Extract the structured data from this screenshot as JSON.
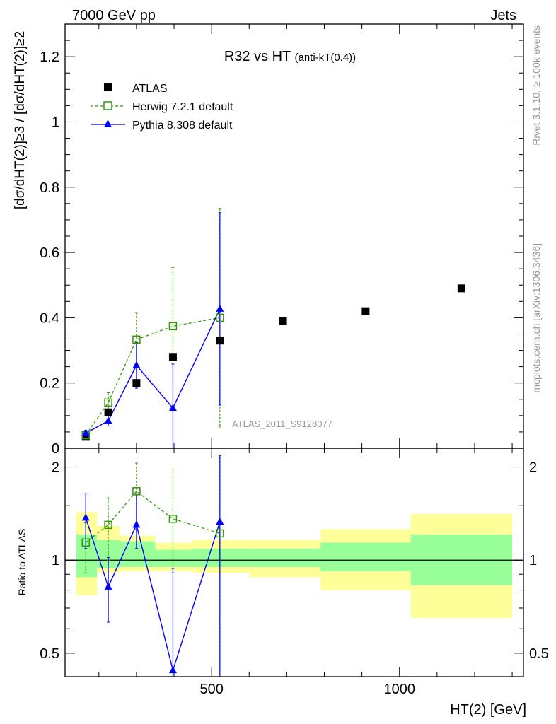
{
  "header": {
    "left": "7000 GeV pp",
    "right": "Jets"
  },
  "side": {
    "rivet": "Rivet 3.1.10, ≥ 100k events",
    "mcplots": "mcplots.cern.ch [arXiv:1306.3436]"
  },
  "chart_data": {
    "type": "scatter",
    "title": "R32 vs HT",
    "title_suffix": "(anti-kT(0.4))",
    "analysis_label": "ATLAS_2011_S9128077",
    "xlabel": "HT(2) [GeV]",
    "ylabel": "[dσ/dHT(2)]≥3 / [dσ/dHT(2)]≥2",
    "ratio_ylabel": "Ratio to ATLAS",
    "xlim": [
      110,
      1330
    ],
    "ylim": [
      0,
      1.3
    ],
    "ratio_ylim": [
      0.42,
      2.3
    ],
    "ratio_log": true,
    "x_ticks": [
      500,
      1000
    ],
    "y_ticks": [
      0,
      0.2,
      0.4,
      0.6,
      0.8,
      1,
      1.2
    ],
    "y_tick_labels": [
      "0",
      "0.2",
      "0.4",
      "0.6",
      "0.8",
      "1",
      "1.2"
    ],
    "ratio_ticks": [
      0.5,
      1,
      2
    ],
    "ratio_tick_labels": [
      "0.5",
      "1",
      "2"
    ],
    "legend_position": "top-left",
    "colors": {
      "atlas": "#000000",
      "herwig": "#339900",
      "pythia": "#0000ff",
      "band_inner": "#99ff99",
      "band_outer": "#ffff99"
    },
    "series": [
      {
        "name": "ATLAS",
        "style": "filled-square",
        "x": [
          165,
          225,
          300,
          397,
          522,
          690,
          910,
          1165
        ],
        "y": [
          0.035,
          0.11,
          0.2,
          0.28,
          0.33,
          0.39,
          0.42,
          0.49
        ]
      },
      {
        "name": "Herwig 7.2.1 default",
        "style": "open-square-dashed",
        "x": [
          165,
          225,
          300,
          397,
          522
        ],
        "y": [
          0.04,
          0.14,
          0.333,
          0.374,
          0.4
        ],
        "err": [
          0.005,
          0.03,
          0.083,
          0.18,
          0.335
        ]
      },
      {
        "name": "Pythia 8.308 default",
        "style": "triangle-line",
        "x": [
          165,
          225,
          300,
          397,
          522
        ],
        "y": [
          0.046,
          0.084,
          0.254,
          0.123,
          0.427
        ],
        "err": [
          0.009,
          0.016,
          0.07,
          0.135,
          0.295
        ]
      }
    ],
    "ratio": {
      "herwig": {
        "x": [
          165,
          225,
          300,
          397,
          522
        ],
        "y": [
          1.14,
          1.3,
          1.67,
          1.36,
          1.22
        ],
        "lo": [
          0.91,
          1.0,
          1.26,
          0.91,
          0.1
        ],
        "hi": [
          1.32,
          1.59,
          2.06,
          1.97,
          2.15
        ]
      },
      "pythia": {
        "x": [
          165,
          225,
          300,
          397,
          522
        ],
        "y": [
          1.37,
          0.82,
          1.3,
          0.44,
          1.33
        ],
        "lo": [
          1.09,
          0.63,
          1.09,
          0.1,
          0.1
        ],
        "hi": [
          1.64,
          1.02,
          1.63,
          0.94,
          2.18
        ]
      },
      "bands": [
        {
          "x1": 140,
          "x2": 195,
          "in_lo": 0.88,
          "in_hi": 1.21,
          "out_lo": 0.77,
          "out_hi": 1.43
        },
        {
          "x1": 195,
          "x2": 255,
          "in_lo": 0.94,
          "in_hi": 1.16,
          "out_lo": 0.91,
          "out_hi": 1.29
        },
        {
          "x1": 255,
          "x2": 350,
          "in_lo": 0.95,
          "in_hi": 1.15,
          "out_lo": 0.92,
          "out_hi": 1.2
        },
        {
          "x1": 350,
          "x2": 450,
          "in_lo": 0.95,
          "in_hi": 1.08,
          "out_lo": 0.92,
          "out_hi": 1.14
        },
        {
          "x1": 450,
          "x2": 600,
          "in_lo": 0.95,
          "in_hi": 1.09,
          "out_lo": 0.91,
          "out_hi": 1.16
        },
        {
          "x1": 600,
          "x2": 790,
          "in_lo": 0.95,
          "in_hi": 1.09,
          "out_lo": 0.88,
          "out_hi": 1.16
        },
        {
          "x1": 790,
          "x2": 1030,
          "in_lo": 0.92,
          "in_hi": 1.14,
          "out_lo": 0.8,
          "out_hi": 1.26
        },
        {
          "x1": 1030,
          "x2": 1300,
          "in_lo": 0.83,
          "in_hi": 1.21,
          "out_lo": 0.65,
          "out_hi": 1.41
        }
      ]
    }
  }
}
